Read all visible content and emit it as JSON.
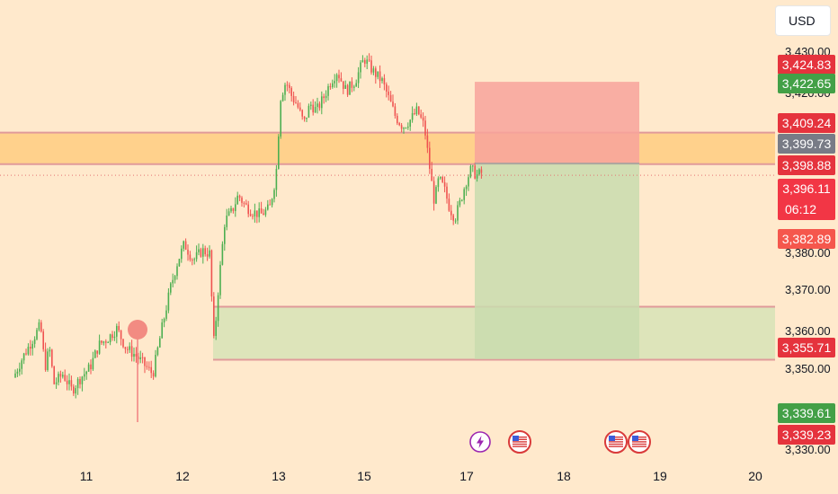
{
  "currency_button": "USD",
  "chart_data": {
    "type": "candlestick",
    "x_ticks": [
      "11",
      "12",
      "13",
      "15",
      "17",
      "18",
      "19",
      "20"
    ],
    "y_ticks": [
      "3,430.00",
      "3,420.00",
      "3,380.00",
      "3,370.00",
      "3,360.00",
      "3,350.00",
      "3,330.00"
    ],
    "ylim": [
      3330,
      3432
    ],
    "grid": false,
    "price_tags": [
      {
        "label": "3,424.83",
        "value": 3424.83,
        "color": "#e5333d"
      },
      {
        "label": "3,422.65",
        "value": 3422.65,
        "color": "#43a047"
      },
      {
        "label": "3,409.24",
        "value": 3409.24,
        "color": "#e5333d"
      },
      {
        "label": "3,399.73",
        "value": 3399.73,
        "color": "#787b86"
      },
      {
        "label": "3,398.88",
        "value": 3398.88,
        "color": "#e5333d"
      },
      {
        "label": "3,396.11",
        "value": 3396.11,
        "color": "#f23645",
        "sub": "06:12"
      },
      {
        "label": "3,382.89",
        "value": 3382.89,
        "color": "#f5574d"
      },
      {
        "label": "3,355.71",
        "value": 3355.71,
        "color": "#e5333d"
      },
      {
        "label": "3,339.61",
        "value": 3339.61,
        "color": "#43a047"
      },
      {
        "label": "3,339.23",
        "value": 3339.23,
        "color": "#e5333d"
      }
    ],
    "zones": [
      {
        "name": "resistance-zone",
        "y_top": 3409.2,
        "y_bottom": 3399.5,
        "color": "#ffcc80"
      },
      {
        "name": "demand-zone",
        "y_top": 3355.7,
        "y_bottom": 3339.4,
        "color": "#d7e3b6"
      },
      {
        "name": "stop-loss-zone",
        "y_top": 3424.8,
        "y_bottom": 3399.7,
        "color": "#f8a39b"
      },
      {
        "name": "take-profit-zone",
        "y_top": 3399.7,
        "y_bottom": 3339.6,
        "color": "#c9dcae"
      }
    ],
    "events": [
      {
        "icon": "lightning-event-icon"
      },
      {
        "icon": "us-flag-event-icon"
      },
      {
        "icon": "us-flag-event-icon"
      },
      {
        "icon": "us-flag-event-icon"
      }
    ],
    "colors": {
      "up": "#26a69a",
      "down": "#ef5350",
      "background": "#ffe9cc"
    }
  }
}
